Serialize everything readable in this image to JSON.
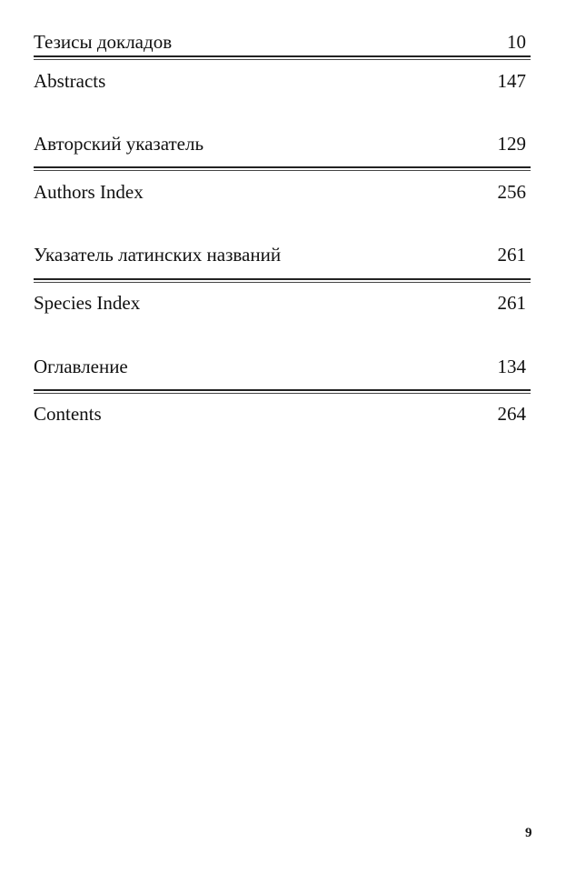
{
  "sections": [
    {
      "ru": {
        "title": "Тезисы докладов",
        "page": "10"
      },
      "en": {
        "title": "Abstracts",
        "page": "147"
      }
    },
    {
      "ru": {
        "title": "Авторский указатель",
        "page": "129"
      },
      "en": {
        "title": "Authors Index",
        "page": "256"
      }
    },
    {
      "ru": {
        "title": "Указатель латинских названий",
        "page": "261"
      },
      "en": {
        "title": "Species Index",
        "page": "261"
      }
    },
    {
      "ru": {
        "title": "Оглавление",
        "page": "134"
      },
      "en": {
        "title": "Contents",
        "page": "264"
      }
    }
  ],
  "page_number": "9"
}
